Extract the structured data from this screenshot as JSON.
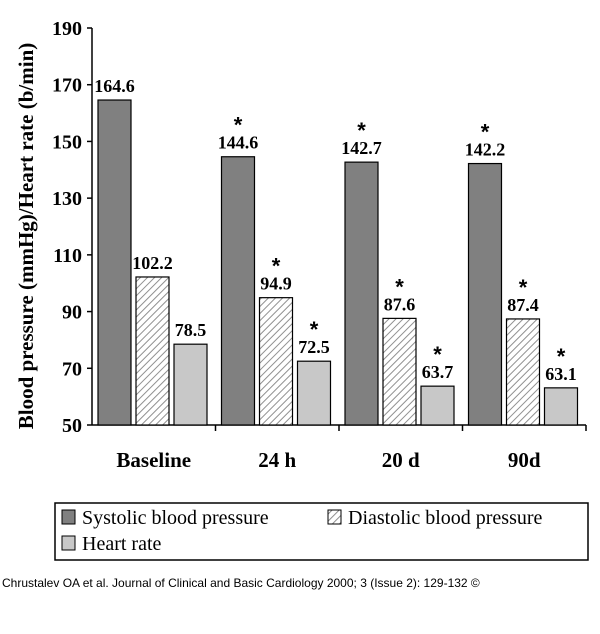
{
  "colors": {
    "systolic": "#808080",
    "diastolic_bg": "#ffffff",
    "diastolic_hatch": "#909090",
    "heart_rate": "#c8c8c8"
  },
  "chart_data": {
    "type": "bar",
    "ylabel": "Blood pressure (mmHg)/Heart rate (b/min)",
    "ylim": [
      50,
      190
    ],
    "yticks": [
      "50",
      "70",
      "90",
      "110",
      "130",
      "150",
      "170",
      "190"
    ],
    "categories": [
      "Baseline",
      "24 h",
      "20 d",
      "90d"
    ],
    "series": [
      {
        "name": "Systolic blood pressure",
        "values": [
          164.6,
          144.6,
          142.7,
          142.2
        ],
        "labels": [
          "164.6",
          "144.6",
          "142.7",
          "142.2"
        ],
        "significant": [
          false,
          true,
          true,
          true
        ]
      },
      {
        "name": "Diastolic blood pressure",
        "values": [
          102.2,
          94.9,
          87.6,
          87.4
        ],
        "labels": [
          "102.2",
          "94.9",
          "87.6",
          "87.4"
        ],
        "significant": [
          false,
          true,
          true,
          true
        ]
      },
      {
        "name": "Heart rate",
        "values": [
          78.5,
          72.5,
          63.7,
          63.1
        ],
        "labels": [
          "78.5",
          "72.5",
          "63.7",
          "63.1"
        ],
        "significant": [
          false,
          true,
          true,
          true
        ]
      }
    ],
    "significance_marker": "*",
    "legend_position": "bottom",
    "grid": false
  },
  "citation": "Chrustalev OA et al. Journal of Clinical and Basic Cardiology 2000; 3 (Issue 2): 129-132 ©"
}
